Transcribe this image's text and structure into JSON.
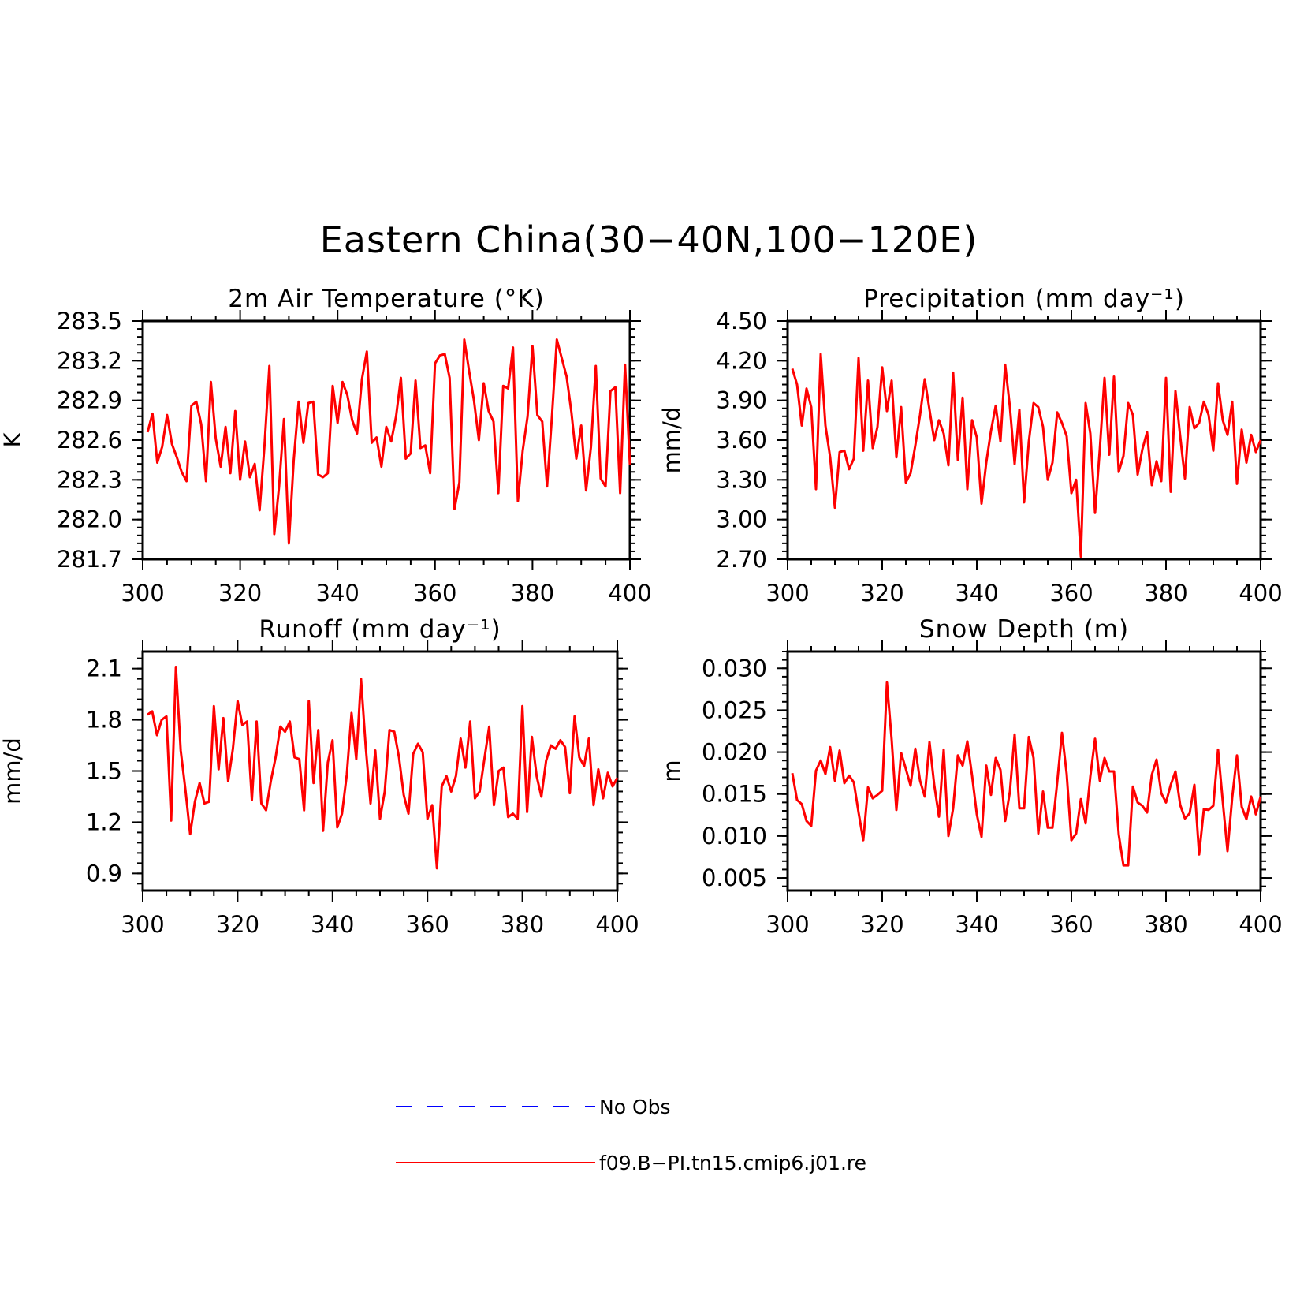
{
  "figure": {
    "title": "Eastern China(30−40N,100−120E)",
    "line_color": "#ff0000",
    "obs_color": "#0000ff"
  },
  "legend": {
    "items": [
      {
        "label": "No Obs",
        "color": "#0000ff",
        "style": "dashed"
      },
      {
        "label": "f09.B−PI.tn15.cmip6.j01.re",
        "color": "#ff0000",
        "style": "solid"
      }
    ]
  },
  "chart_data": [
    {
      "type": "line",
      "title": "2m Air Temperature (°K)",
      "ylabel": "K",
      "xlabel": "",
      "xlim": [
        300,
        400
      ],
      "ylim": [
        281.7,
        283.5
      ],
      "xticks": [
        "300",
        "320",
        "340",
        "360",
        "380",
        "400"
      ],
      "yticks": [
        "281.7",
        "282.0",
        "282.3",
        "282.6",
        "282.9",
        "283.2",
        "283.5"
      ],
      "x_start": 301,
      "series": [
        {
          "name": "f09.B−PI.tn15.cmip6.j01.re",
          "values": [
            282.66,
            282.8,
            282.43,
            282.55,
            282.79,
            282.57,
            282.47,
            282.36,
            282.29,
            282.86,
            282.89,
            282.72,
            282.29,
            283.04,
            282.61,
            282.4,
            282.7,
            282.35,
            282.82,
            282.3,
            282.59,
            282.32,
            282.42,
            282.07,
            282.56,
            283.16,
            281.89,
            282.25,
            282.76,
            281.82,
            282.45,
            282.89,
            282.58,
            282.88,
            282.89,
            282.34,
            282.32,
            282.35,
            283.01,
            282.73,
            283.04,
            282.94,
            282.75,
            282.65,
            283.06,
            283.27,
            282.58,
            282.62,
            282.4,
            282.7,
            282.59,
            282.78,
            283.07,
            282.46,
            282.5,
            283.05,
            282.54,
            282.56,
            282.35,
            283.18,
            283.24,
            283.25,
            283.07,
            282.08,
            282.28,
            283.36,
            283.12,
            282.9,
            282.6,
            283.03,
            282.82,
            282.74,
            282.2,
            283.01,
            282.99,
            283.3,
            282.14,
            282.52,
            282.78,
            283.31,
            282.79,
            282.74,
            282.25,
            282.78,
            283.36,
            283.22,
            283.08,
            282.81,
            282.46,
            282.71,
            282.22,
            282.55,
            283.16,
            282.31,
            282.25,
            282.97,
            283.0,
            282.2,
            283.17,
            282.41
          ]
        }
      ]
    },
    {
      "type": "line",
      "title": "Precipitation (mm day⁻¹)",
      "ylabel": "mm/d",
      "xlabel": "",
      "xlim": [
        300,
        400
      ],
      "ylim": [
        2.7,
        4.5
      ],
      "xticks": [
        "300",
        "320",
        "340",
        "360",
        "380",
        "400"
      ],
      "yticks": [
        "2.70",
        "3.00",
        "3.30",
        "3.60",
        "3.90",
        "4.20",
        "4.50"
      ],
      "x_start": 301,
      "series": [
        {
          "name": "f09.B−PI.tn15.cmip6.j01.re",
          "values": [
            4.14,
            4.02,
            3.71,
            3.99,
            3.85,
            3.23,
            4.25,
            3.71,
            3.47,
            3.09,
            3.51,
            3.52,
            3.38,
            3.46,
            4.22,
            3.52,
            4.05,
            3.54,
            3.7,
            4.15,
            3.82,
            4.05,
            3.47,
            3.85,
            3.28,
            3.35,
            3.56,
            3.79,
            4.06,
            3.83,
            3.6,
            3.75,
            3.65,
            3.41,
            4.11,
            3.45,
            3.92,
            3.23,
            3.75,
            3.62,
            3.12,
            3.43,
            3.67,
            3.86,
            3.59,
            4.17,
            3.85,
            3.42,
            3.83,
            3.13,
            3.59,
            3.88,
            3.85,
            3.7,
            3.3,
            3.43,
            3.81,
            3.73,
            3.63,
            3.2,
            3.3,
            2.72,
            3.88,
            3.65,
            3.05,
            3.53,
            4.07,
            3.49,
            4.08,
            3.36,
            3.48,
            3.88,
            3.79,
            3.34,
            3.53,
            3.66,
            3.26,
            3.44,
            3.29,
            4.07,
            3.21,
            3.97,
            3.63,
            3.31,
            3.85,
            3.69,
            3.73,
            3.89,
            3.79,
            3.52,
            4.03,
            3.75,
            3.64,
            3.89,
            3.27,
            3.68,
            3.43,
            3.64,
            3.51,
            3.6
          ]
        }
      ]
    },
    {
      "type": "line",
      "title": "Runoff (mm day⁻¹)",
      "ylabel": "mm/d",
      "xlabel": "",
      "xlim": [
        300,
        400
      ],
      "ylim": [
        0.8,
        2.2
      ],
      "xticks": [
        "300",
        "320",
        "340",
        "360",
        "380",
        "400"
      ],
      "yticks": [
        "0.9",
        "1.2",
        "1.5",
        "1.8",
        "2.1"
      ],
      "x_start": 301,
      "series": [
        {
          "name": "f09.B−PI.tn15.cmip6.j01.re",
          "values": [
            1.83,
            1.85,
            1.71,
            1.8,
            1.82,
            1.21,
            2.11,
            1.62,
            1.39,
            1.13,
            1.32,
            1.43,
            1.31,
            1.32,
            1.88,
            1.51,
            1.81,
            1.44,
            1.63,
            1.91,
            1.77,
            1.79,
            1.33,
            1.79,
            1.31,
            1.27,
            1.44,
            1.58,
            1.76,
            1.73,
            1.79,
            1.58,
            1.57,
            1.27,
            1.91,
            1.43,
            1.74,
            1.15,
            1.55,
            1.68,
            1.17,
            1.25,
            1.48,
            1.84,
            1.57,
            2.04,
            1.64,
            1.31,
            1.62,
            1.22,
            1.38,
            1.74,
            1.73,
            1.58,
            1.36,
            1.25,
            1.6,
            1.66,
            1.61,
            1.22,
            1.3,
            0.93,
            1.41,
            1.47,
            1.38,
            1.47,
            1.69,
            1.52,
            1.79,
            1.34,
            1.38,
            1.57,
            1.76,
            1.3,
            1.5,
            1.52,
            1.23,
            1.25,
            1.22,
            1.88,
            1.26,
            1.7,
            1.47,
            1.35,
            1.56,
            1.65,
            1.63,
            1.68,
            1.64,
            1.37,
            1.82,
            1.58,
            1.53,
            1.69,
            1.3,
            1.51,
            1.34,
            1.49,
            1.41,
            1.46
          ]
        }
      ]
    },
    {
      "type": "line",
      "title": "Snow Depth (m)",
      "ylabel": "m",
      "xlabel": "",
      "xlim": [
        300,
        400
      ],
      "ylim": [
        0.0035,
        0.032
      ],
      "xticks": [
        "300",
        "320",
        "340",
        "360",
        "380",
        "400"
      ],
      "yticks": [
        "0.005",
        "0.010",
        "0.015",
        "0.020",
        "0.025",
        "0.030"
      ],
      "x_start": 301,
      "series": [
        {
          "name": "f09.B−PI.tn15.cmip6.j01.re",
          "values": [
            0.0175,
            0.0143,
            0.0138,
            0.0118,
            0.0112,
            0.0178,
            0.019,
            0.0174,
            0.0206,
            0.0166,
            0.0202,
            0.0163,
            0.0172,
            0.0164,
            0.0128,
            0.0095,
            0.0158,
            0.0145,
            0.0149,
            0.0154,
            0.0283,
            0.0215,
            0.0131,
            0.0199,
            0.018,
            0.016,
            0.0204,
            0.0166,
            0.0147,
            0.0212,
            0.0161,
            0.0123,
            0.0203,
            0.01,
            0.0133,
            0.0196,
            0.0184,
            0.0213,
            0.0172,
            0.0126,
            0.0099,
            0.0184,
            0.0149,
            0.0193,
            0.0179,
            0.0118,
            0.0153,
            0.0221,
            0.0133,
            0.0133,
            0.0218,
            0.0193,
            0.0103,
            0.0153,
            0.011,
            0.011,
            0.0164,
            0.0223,
            0.0174,
            0.0095,
            0.0103,
            0.0144,
            0.0115,
            0.0171,
            0.0216,
            0.0166,
            0.0193,
            0.0177,
            0.0177,
            0.0102,
            0.0065,
            0.0065,
            0.0159,
            0.014,
            0.0136,
            0.0128,
            0.0173,
            0.0191,
            0.0151,
            0.014,
            0.0161,
            0.0177,
            0.0137,
            0.0121,
            0.0127,
            0.0161,
            0.0078,
            0.0132,
            0.0131,
            0.0136,
            0.0203,
            0.0141,
            0.0082,
            0.0146,
            0.0196,
            0.0135,
            0.012,
            0.0147,
            0.0126,
            0.0147
          ]
        }
      ]
    }
  ]
}
